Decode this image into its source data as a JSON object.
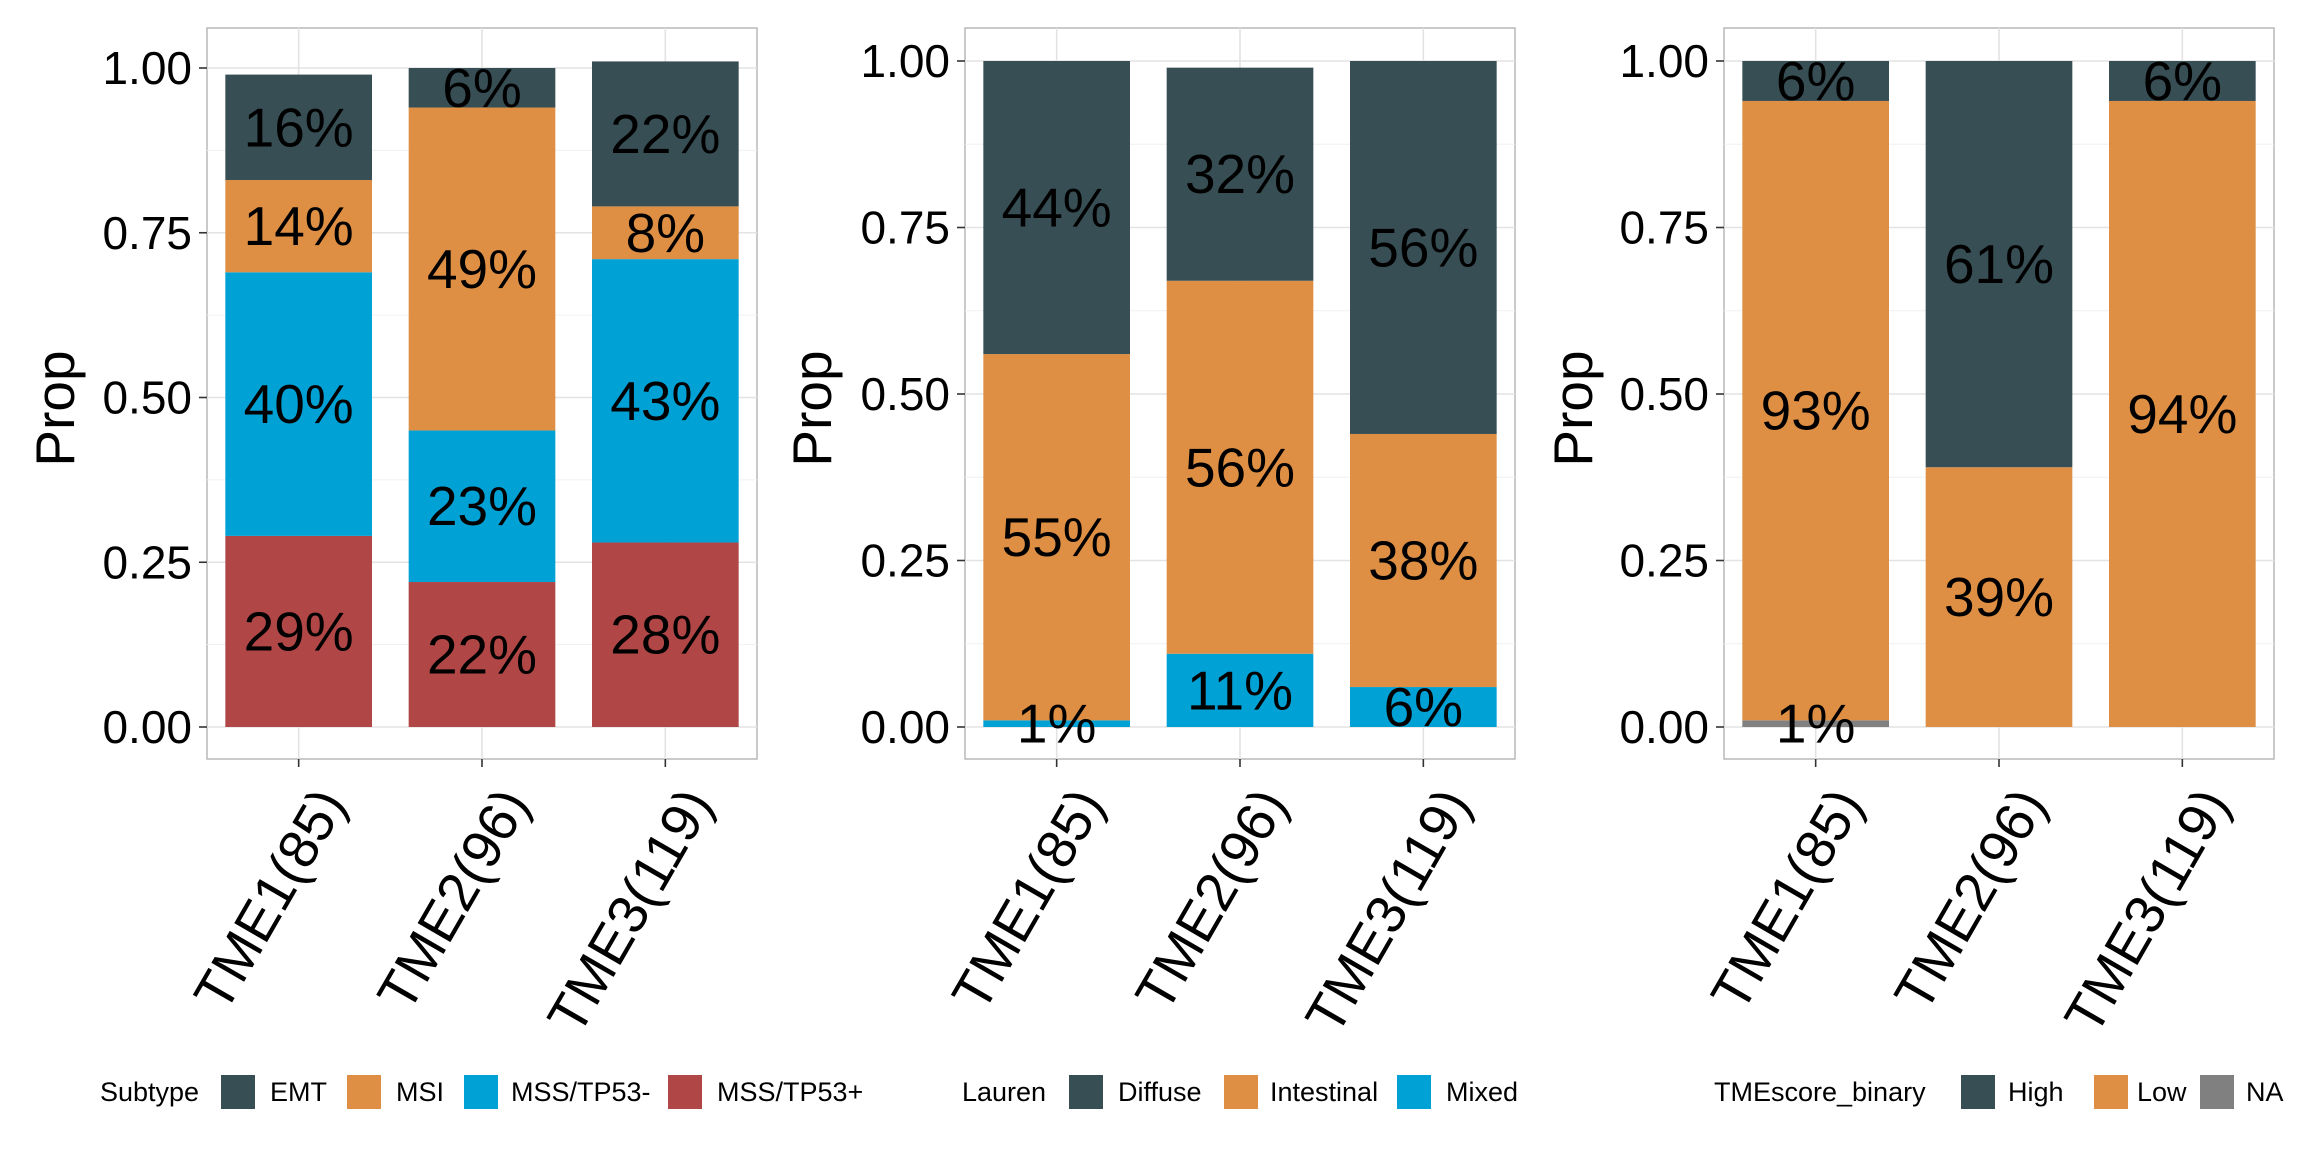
{
  "chart_data": [
    {
      "type": "bar",
      "stacked": true,
      "categories": [
        "TME1(85)",
        "TME2(96)",
        "TME3(119)"
      ],
      "ylabel": "Prop",
      "xlabel": "",
      "ylim": [
        0,
        1
      ],
      "yticks": [
        "0.00",
        "0.25",
        "0.50",
        "0.75",
        "1.00"
      ],
      "grid": true,
      "legend": {
        "position": "bottom",
        "title": "Subtype",
        "entries": [
          "EMT",
          "MSI",
          "MSS/TP53-",
          "MSS/TP53+"
        ]
      },
      "series": [
        {
          "name": "MSS/TP53+",
          "color": "#B04746",
          "values": [
            0.29,
            0.22,
            0.28
          ],
          "labels": [
            "29%",
            "22%",
            "28%"
          ]
        },
        {
          "name": "MSS/TP53-",
          "color": "#00A1D5",
          "values": [
            0.4,
            0.23,
            0.43
          ],
          "labels": [
            "40%",
            "23%",
            "43%"
          ]
        },
        {
          "name": "MSI",
          "color": "#DF8F44",
          "values": [
            0.14,
            0.49,
            0.08
          ],
          "labels": [
            "14%",
            "49%",
            "8%"
          ]
        },
        {
          "name": "EMT",
          "color": "#374E55",
          "values": [
            0.16,
            0.06,
            0.22
          ],
          "labels": [
            "16%",
            "6%",
            "22%"
          ]
        }
      ]
    },
    {
      "type": "bar",
      "stacked": true,
      "categories": [
        "TME1(85)",
        "TME2(96)",
        "TME3(119)"
      ],
      "ylabel": "Prop",
      "xlabel": "",
      "ylim": [
        0,
        1
      ],
      "yticks": [
        "0.00",
        "0.25",
        "0.50",
        "0.75",
        "1.00"
      ],
      "grid": true,
      "legend": {
        "position": "bottom",
        "title": "Lauren",
        "entries": [
          "Diffuse",
          "Intestinal",
          "Mixed"
        ]
      },
      "series": [
        {
          "name": "Mixed",
          "color": "#00A1D5",
          "values": [
            0.01,
            0.11,
            0.06
          ],
          "labels": [
            "1%",
            "11%",
            "6%"
          ]
        },
        {
          "name": "Intestinal",
          "color": "#DF8F44",
          "values": [
            0.55,
            0.56,
            0.38
          ],
          "labels": [
            "55%",
            "56%",
            "38%"
          ]
        },
        {
          "name": "Diffuse",
          "color": "#374E55",
          "values": [
            0.44,
            0.32,
            0.56
          ],
          "labels": [
            "44%",
            "32%",
            "56%"
          ]
        }
      ]
    },
    {
      "type": "bar",
      "stacked": true,
      "categories": [
        "TME1(85)",
        "TME2(96)",
        "TME3(119)"
      ],
      "ylabel": "Prop",
      "xlabel": "",
      "ylim": [
        0,
        1
      ],
      "yticks": [
        "0.00",
        "0.25",
        "0.50",
        "0.75",
        "1.00"
      ],
      "grid": true,
      "legend": {
        "position": "bottom",
        "title": "TMEscore_binary",
        "entries": [
          "High",
          "Low",
          "NA"
        ]
      },
      "series": [
        {
          "name": "NA",
          "color": "#808080",
          "values": [
            0.01,
            0,
            0
          ],
          "labels": [
            "1%",
            "",
            ""
          ]
        },
        {
          "name": "Low",
          "color": "#DF8F44",
          "values": [
            0.93,
            0.39,
            0.94
          ],
          "labels": [
            "93%",
            "39%",
            "94%"
          ]
        },
        {
          "name": "High",
          "color": "#374E55",
          "values": [
            0.06,
            0.61,
            0.06
          ],
          "labels": [
            "6%",
            "61%",
            "6%"
          ]
        }
      ]
    }
  ]
}
